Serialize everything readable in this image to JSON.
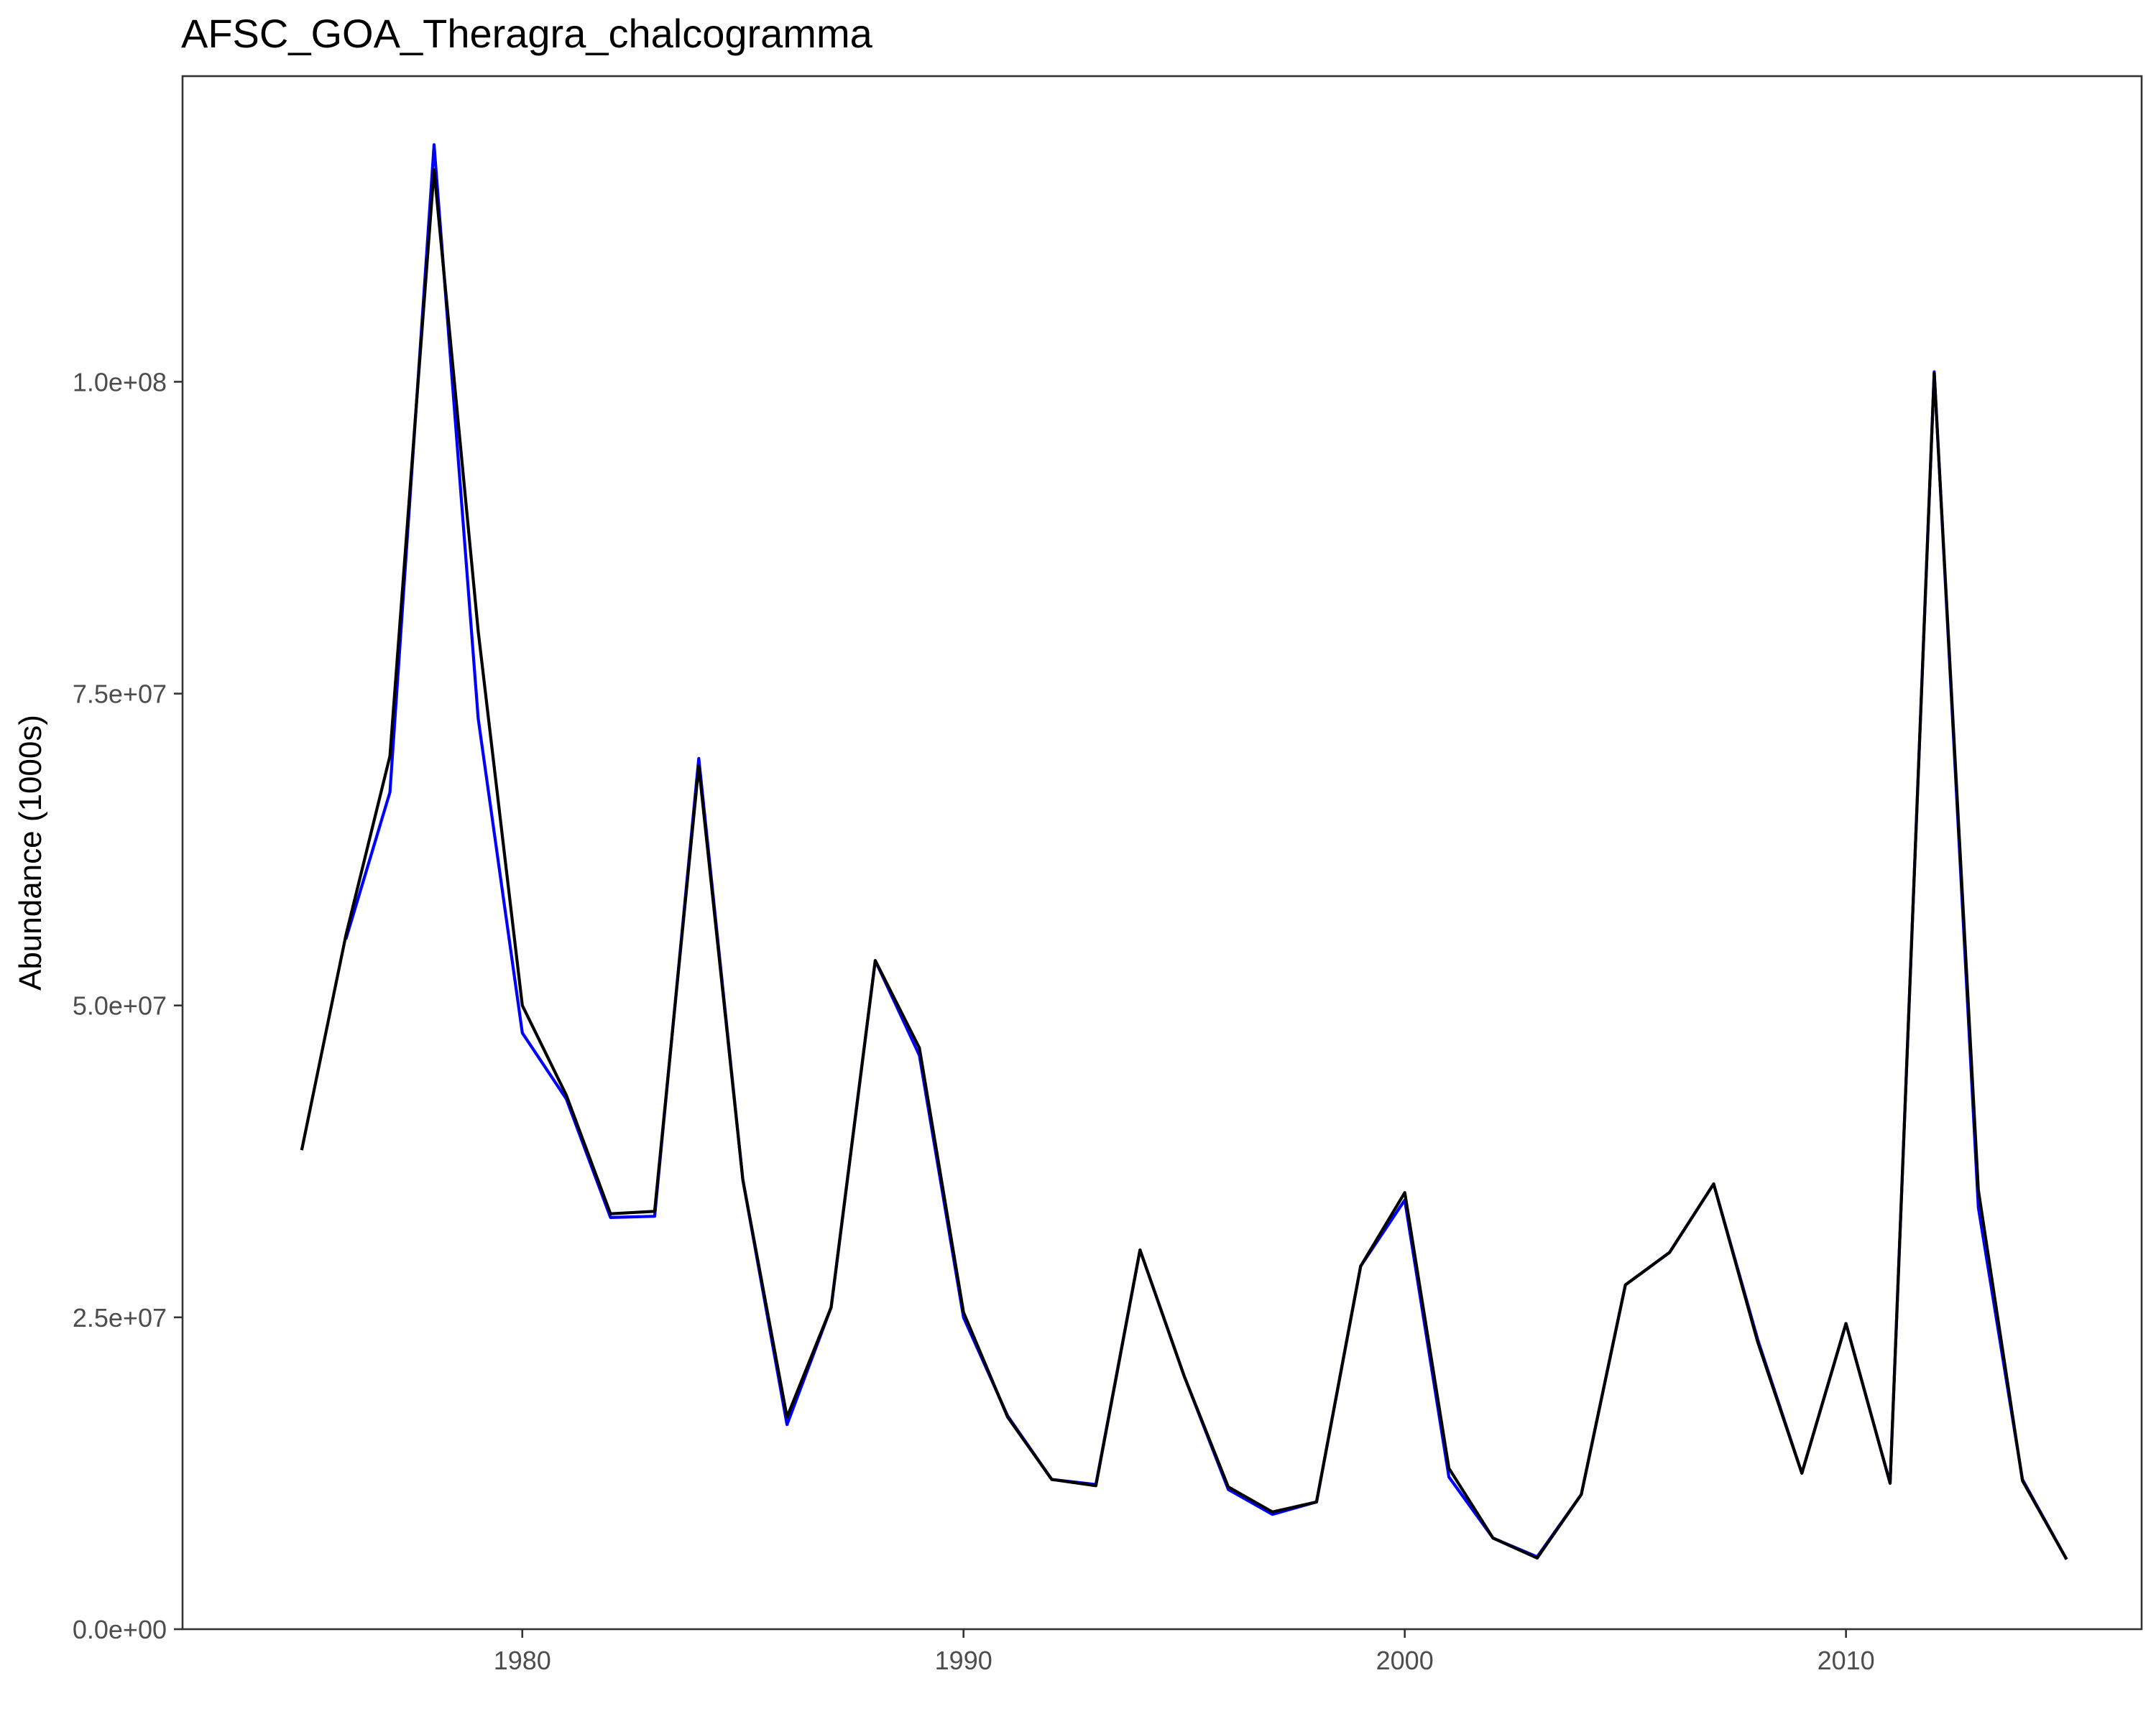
{
  "chart_data": {
    "type": "line",
    "title": "AFSC_GOA_Theragra_chalcogramma",
    "xlabel": "",
    "ylabel": "Abundance (1000s)",
    "xlim": [
      1972.3,
      2016.7
    ],
    "ylim": [
      0,
      124500000
    ],
    "x_ticks": [
      1980,
      1990,
      2000,
      2010
    ],
    "x_tick_labels": [
      "1980",
      "1990",
      "2000",
      "2010"
    ],
    "y_ticks": [
      0,
      25000000,
      50000000,
      75000000,
      100000000
    ],
    "y_tick_labels": [
      "0.0e+00",
      "2.5e+07",
      "5.0e+07",
      "7.5e+07",
      "1.0e+08"
    ],
    "grid": false,
    "series": [
      {
        "color": "#0000ff",
        "x": [
          1976,
          1977,
          1978,
          1979,
          1980,
          1981,
          1982,
          1983,
          1984,
          1985,
          1986,
          1987,
          1988,
          1989,
          1990,
          1991,
          1992,
          1993,
          1994,
          1995,
          1996,
          1997,
          1998,
          1999,
          2000,
          2001,
          2002,
          2003,
          2004,
          2005,
          2006,
          2007,
          2008,
          2009,
          2010,
          2011,
          2012,
          2013,
          2014,
          2015
        ],
        "y": [
          55300000,
          67100000,
          119000000,
          73000000,
          47800000,
          42500000,
          33000000,
          33100000,
          69800000,
          36000000,
          16400000,
          25800000,
          53600000,
          46000000,
          25000000,
          17100000,
          12000000,
          11600000,
          30400000,
          20300000,
          11200000,
          9200000,
          10200000,
          29100000,
          34400000,
          12200000,
          7300000,
          5800000,
          10800000,
          27600000,
          30200000,
          35700000,
          23200000,
          12500000,
          24500000,
          11700000,
          100800000,
          33800000,
          12000000,
          5600000
        ]
      },
      {
        "color": "#000000",
        "x": [
          1975,
          1976,
          1977,
          1978,
          1979,
          1980,
          1981,
          1982,
          1983,
          1984,
          1985,
          1986,
          1987,
          1988,
          1989,
          1990,
          1991,
          1992,
          1993,
          1994,
          1995,
          1996,
          1997,
          1998,
          1999,
          2000,
          2001,
          2002,
          2003,
          2004,
          2005,
          2006,
          2007,
          2008,
          2009,
          2010,
          2011,
          2012,
          2013,
          2014,
          2015
        ],
        "y": [
          38400000,
          55600000,
          70000000,
          117000000,
          80000000,
          50000000,
          42800000,
          33300000,
          33500000,
          69200000,
          36000000,
          17000000,
          25800000,
          53600000,
          46600000,
          25400000,
          17000000,
          12000000,
          11500000,
          30400000,
          20300000,
          11400000,
          9400000,
          10200000,
          29100000,
          35000000,
          12900000,
          7300000,
          5700000,
          10800000,
          27600000,
          30200000,
          35700000,
          23000000,
          12500000,
          24500000,
          11700000,
          100700000,
          35200000,
          11900000,
          5600000
        ]
      }
    ]
  }
}
